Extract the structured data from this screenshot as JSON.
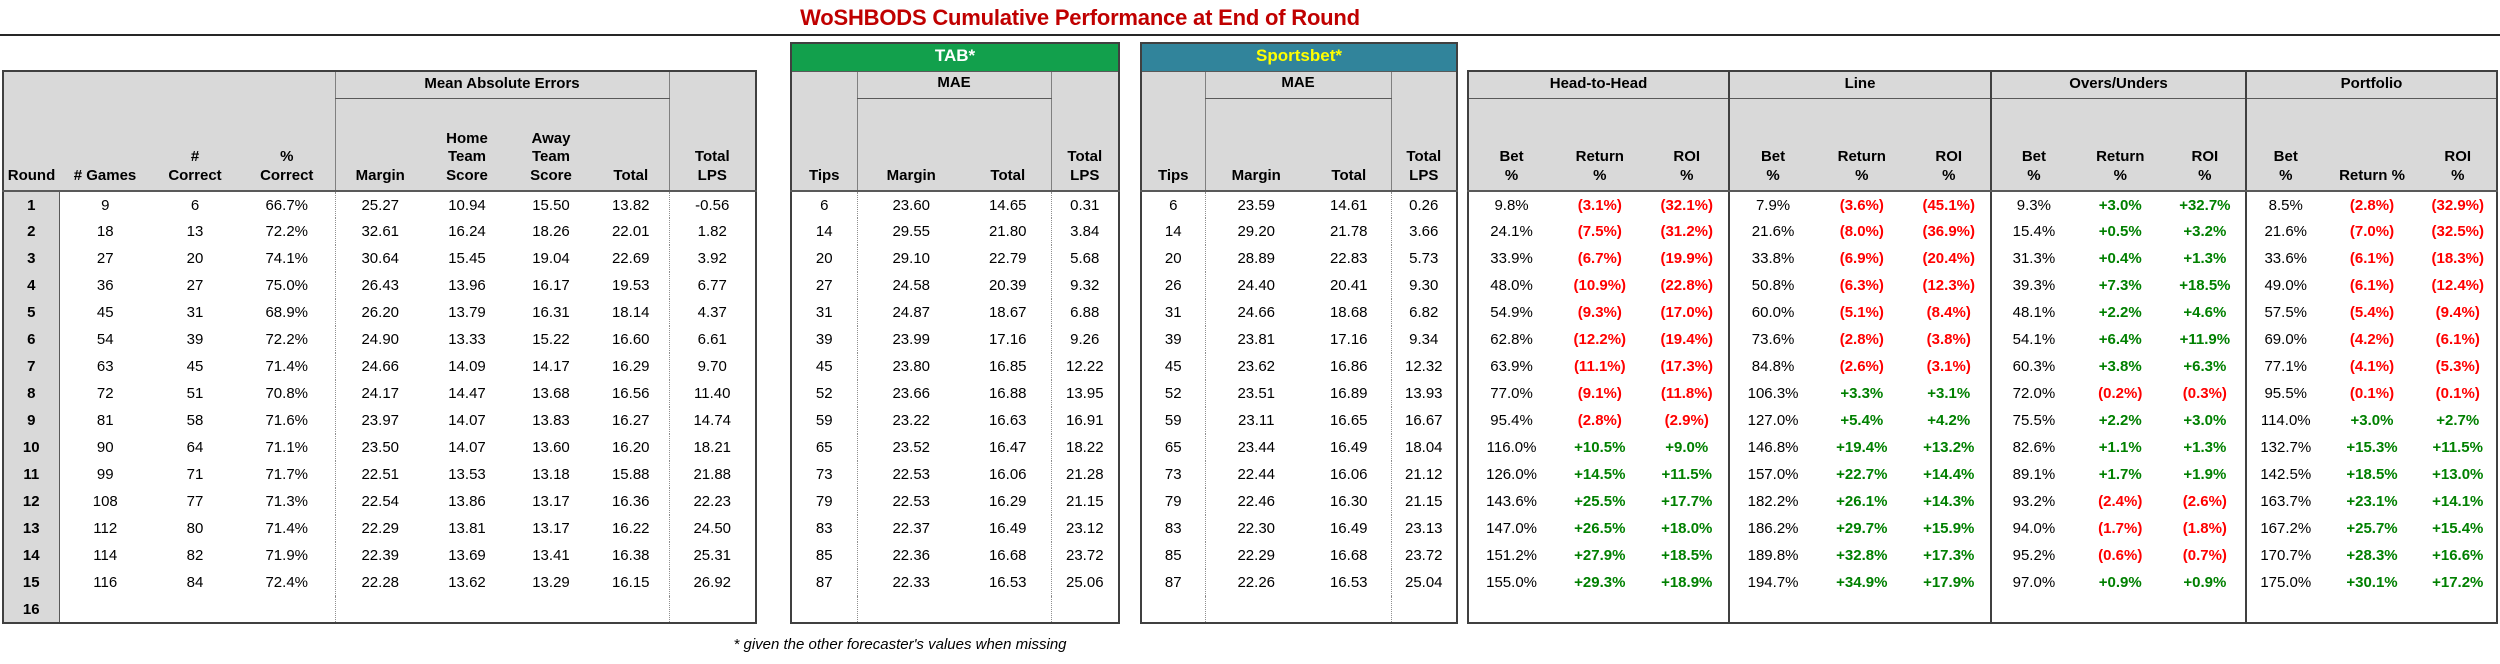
{
  "title": "WoSHBODS Cumulative Performance at End of Round",
  "footnote": "* given the other forecaster's values when missing",
  "colors": {
    "title": "#C00000",
    "tab_band": "#12A04C",
    "sportsbet_band": "#31849B",
    "sportsbet_text": "#FFFF00",
    "negative": "#FF0000",
    "positive": "#008000",
    "header_bg": "#D9D9D9"
  },
  "left": {
    "group": "Mean Absolute Errors",
    "cols": [
      "Round",
      "# Games",
      "#\nCorrect",
      "%\nCorrect",
      "Margin",
      "Home\nTeam\nScore",
      "Away\nTeam\nScore",
      "Total",
      "Total\nLPS"
    ]
  },
  "tab": {
    "band": "TAB*",
    "group": "MAE",
    "cols": [
      "Tips",
      "Margin",
      "Total",
      "Total\nLPS"
    ]
  },
  "sportsbet": {
    "band": "Sportsbet*",
    "group": "MAE",
    "cols": [
      "Tips",
      "Margin",
      "Total",
      "Total\nLPS"
    ]
  },
  "betting": [
    {
      "name": "Head-to-Head",
      "cols": [
        "Bet\n%",
        "Return\n%",
        "ROI\n%"
      ]
    },
    {
      "name": "Line",
      "cols": [
        "Bet\n%",
        "Return\n%",
        "ROI\n%"
      ]
    },
    {
      "name": "Overs/Unders",
      "cols": [
        "Bet\n%",
        "Return\n%",
        "ROI\n%"
      ]
    },
    {
      "name": "Portfolio",
      "cols": [
        "Bet\n%",
        "Return %",
        "ROI\n%"
      ]
    }
  ],
  "rows": [
    {
      "round": "1",
      "games": "9",
      "correct": "6",
      "pct": "66.7%",
      "mae": [
        "25.27",
        "10.94",
        "15.50",
        "13.82"
      ],
      "lps": "-0.56",
      "tab": [
        "6",
        "23.60",
        "14.65",
        "0.31"
      ],
      "sb": [
        "6",
        "23.59",
        "14.61",
        "0.26"
      ],
      "h2h": [
        "9.8%",
        "(3.1%)",
        "(32.1%)"
      ],
      "line": [
        "7.9%",
        "(3.6%)",
        "(45.1%)"
      ],
      "ou": [
        "9.3%",
        "+3.0%",
        "+32.7%"
      ],
      "pf": [
        "8.5%",
        "(2.8%)",
        "(32.9%)"
      ]
    },
    {
      "round": "2",
      "games": "18",
      "correct": "13",
      "pct": "72.2%",
      "mae": [
        "32.61",
        "16.24",
        "18.26",
        "22.01"
      ],
      "lps": "1.82",
      "tab": [
        "14",
        "29.55",
        "21.80",
        "3.84"
      ],
      "sb": [
        "14",
        "29.20",
        "21.78",
        "3.66"
      ],
      "h2h": [
        "24.1%",
        "(7.5%)",
        "(31.2%)"
      ],
      "line": [
        "21.6%",
        "(8.0%)",
        "(36.9%)"
      ],
      "ou": [
        "15.4%",
        "+0.5%",
        "+3.2%"
      ],
      "pf": [
        "21.6%",
        "(7.0%)",
        "(32.5%)"
      ]
    },
    {
      "round": "3",
      "games": "27",
      "correct": "20",
      "pct": "74.1%",
      "mae": [
        "30.64",
        "15.45",
        "19.04",
        "22.69"
      ],
      "lps": "3.92",
      "tab": [
        "20",
        "29.10",
        "22.79",
        "5.68"
      ],
      "sb": [
        "20",
        "28.89",
        "22.83",
        "5.73"
      ],
      "h2h": [
        "33.9%",
        "(6.7%)",
        "(19.9%)"
      ],
      "line": [
        "33.8%",
        "(6.9%)",
        "(20.4%)"
      ],
      "ou": [
        "31.3%",
        "+0.4%",
        "+1.3%"
      ],
      "pf": [
        "33.6%",
        "(6.1%)",
        "(18.3%)"
      ]
    },
    {
      "round": "4",
      "games": "36",
      "correct": "27",
      "pct": "75.0%",
      "mae": [
        "26.43",
        "13.96",
        "16.17",
        "19.53"
      ],
      "lps": "6.77",
      "tab": [
        "27",
        "24.58",
        "20.39",
        "9.32"
      ],
      "sb": [
        "26",
        "24.40",
        "20.41",
        "9.30"
      ],
      "h2h": [
        "48.0%",
        "(10.9%)",
        "(22.8%)"
      ],
      "line": [
        "50.8%",
        "(6.3%)",
        "(12.3%)"
      ],
      "ou": [
        "39.3%",
        "+7.3%",
        "+18.5%"
      ],
      "pf": [
        "49.0%",
        "(6.1%)",
        "(12.4%)"
      ]
    },
    {
      "round": "5",
      "games": "45",
      "correct": "31",
      "pct": "68.9%",
      "mae": [
        "26.20",
        "13.79",
        "16.31",
        "18.14"
      ],
      "lps": "4.37",
      "tab": [
        "31",
        "24.87",
        "18.67",
        "6.88"
      ],
      "sb": [
        "31",
        "24.66",
        "18.68",
        "6.82"
      ],
      "h2h": [
        "54.9%",
        "(9.3%)",
        "(17.0%)"
      ],
      "line": [
        "60.0%",
        "(5.1%)",
        "(8.4%)"
      ],
      "ou": [
        "48.1%",
        "+2.2%",
        "+4.6%"
      ],
      "pf": [
        "57.5%",
        "(5.4%)",
        "(9.4%)"
      ]
    },
    {
      "round": "6",
      "games": "54",
      "correct": "39",
      "pct": "72.2%",
      "mae": [
        "24.90",
        "13.33",
        "15.22",
        "16.60"
      ],
      "lps": "6.61",
      "tab": [
        "39",
        "23.99",
        "17.16",
        "9.26"
      ],
      "sb": [
        "39",
        "23.81",
        "17.16",
        "9.34"
      ],
      "h2h": [
        "62.8%",
        "(12.2%)",
        "(19.4%)"
      ],
      "line": [
        "73.6%",
        "(2.8%)",
        "(3.8%)"
      ],
      "ou": [
        "54.1%",
        "+6.4%",
        "+11.9%"
      ],
      "pf": [
        "69.0%",
        "(4.2%)",
        "(6.1%)"
      ]
    },
    {
      "round": "7",
      "games": "63",
      "correct": "45",
      "pct": "71.4%",
      "mae": [
        "24.66",
        "14.09",
        "14.17",
        "16.29"
      ],
      "lps": "9.70",
      "tab": [
        "45",
        "23.80",
        "16.85",
        "12.22"
      ],
      "sb": [
        "45",
        "23.62",
        "16.86",
        "12.32"
      ],
      "h2h": [
        "63.9%",
        "(11.1%)",
        "(17.3%)"
      ],
      "line": [
        "84.8%",
        "(2.6%)",
        "(3.1%)"
      ],
      "ou": [
        "60.3%",
        "+3.8%",
        "+6.3%"
      ],
      "pf": [
        "77.1%",
        "(4.1%)",
        "(5.3%)"
      ]
    },
    {
      "round": "8",
      "games": "72",
      "correct": "51",
      "pct": "70.8%",
      "mae": [
        "24.17",
        "14.47",
        "13.68",
        "16.56"
      ],
      "lps": "11.40",
      "tab": [
        "52",
        "23.66",
        "16.88",
        "13.95"
      ],
      "sb": [
        "52",
        "23.51",
        "16.89",
        "13.93"
      ],
      "h2h": [
        "77.0%",
        "(9.1%)",
        "(11.8%)"
      ],
      "line": [
        "106.3%",
        "+3.3%",
        "+3.1%"
      ],
      "ou": [
        "72.0%",
        "(0.2%)",
        "(0.3%)"
      ],
      "pf": [
        "95.5%",
        "(0.1%)",
        "(0.1%)"
      ]
    },
    {
      "round": "9",
      "games": "81",
      "correct": "58",
      "pct": "71.6%",
      "mae": [
        "23.97",
        "14.07",
        "13.83",
        "16.27"
      ],
      "lps": "14.74",
      "tab": [
        "59",
        "23.22",
        "16.63",
        "16.91"
      ],
      "sb": [
        "59",
        "23.11",
        "16.65",
        "16.67"
      ],
      "h2h": [
        "95.4%",
        "(2.8%)",
        "(2.9%)"
      ],
      "line": [
        "127.0%",
        "+5.4%",
        "+4.2%"
      ],
      "ou": [
        "75.5%",
        "+2.2%",
        "+3.0%"
      ],
      "pf": [
        "114.0%",
        "+3.0%",
        "+2.7%"
      ]
    },
    {
      "round": "10",
      "games": "90",
      "correct": "64",
      "pct": "71.1%",
      "mae": [
        "23.50",
        "14.07",
        "13.60",
        "16.20"
      ],
      "lps": "18.21",
      "tab": [
        "65",
        "23.52",
        "16.47",
        "18.22"
      ],
      "sb": [
        "65",
        "23.44",
        "16.49",
        "18.04"
      ],
      "h2h": [
        "116.0%",
        "+10.5%",
        "+9.0%"
      ],
      "line": [
        "146.8%",
        "+19.4%",
        "+13.2%"
      ],
      "ou": [
        "82.6%",
        "+1.1%",
        "+1.3%"
      ],
      "pf": [
        "132.7%",
        "+15.3%",
        "+11.5%"
      ]
    },
    {
      "round": "11",
      "games": "99",
      "correct": "71",
      "pct": "71.7%",
      "mae": [
        "22.51",
        "13.53",
        "13.18",
        "15.88"
      ],
      "lps": "21.88",
      "tab": [
        "73",
        "22.53",
        "16.06",
        "21.28"
      ],
      "sb": [
        "73",
        "22.44",
        "16.06",
        "21.12"
      ],
      "h2h": [
        "126.0%",
        "+14.5%",
        "+11.5%"
      ],
      "line": [
        "157.0%",
        "+22.7%",
        "+14.4%"
      ],
      "ou": [
        "89.1%",
        "+1.7%",
        "+1.9%"
      ],
      "pf": [
        "142.5%",
        "+18.5%",
        "+13.0%"
      ]
    },
    {
      "round": "12",
      "games": "108",
      "correct": "77",
      "pct": "71.3%",
      "mae": [
        "22.54",
        "13.86",
        "13.17",
        "16.36"
      ],
      "lps": "22.23",
      "tab": [
        "79",
        "22.53",
        "16.29",
        "21.15"
      ],
      "sb": [
        "79",
        "22.46",
        "16.30",
        "21.15"
      ],
      "h2h": [
        "143.6%",
        "+25.5%",
        "+17.7%"
      ],
      "line": [
        "182.2%",
        "+26.1%",
        "+14.3%"
      ],
      "ou": [
        "93.2%",
        "(2.4%)",
        "(2.6%)"
      ],
      "pf": [
        "163.7%",
        "+23.1%",
        "+14.1%"
      ]
    },
    {
      "round": "13",
      "games": "112",
      "correct": "80",
      "pct": "71.4%",
      "mae": [
        "22.29",
        "13.81",
        "13.17",
        "16.22"
      ],
      "lps": "24.50",
      "tab": [
        "83",
        "22.37",
        "16.49",
        "23.12"
      ],
      "sb": [
        "83",
        "22.30",
        "16.49",
        "23.13"
      ],
      "h2h": [
        "147.0%",
        "+26.5%",
        "+18.0%"
      ],
      "line": [
        "186.2%",
        "+29.7%",
        "+15.9%"
      ],
      "ou": [
        "94.0%",
        "(1.7%)",
        "(1.8%)"
      ],
      "pf": [
        "167.2%",
        "+25.7%",
        "+15.4%"
      ]
    },
    {
      "round": "14",
      "games": "114",
      "correct": "82",
      "pct": "71.9%",
      "mae": [
        "22.39",
        "13.69",
        "13.41",
        "16.38"
      ],
      "lps": "25.31",
      "tab": [
        "85",
        "22.36",
        "16.68",
        "23.72"
      ],
      "sb": [
        "85",
        "22.29",
        "16.68",
        "23.72"
      ],
      "h2h": [
        "151.2%",
        "+27.9%",
        "+18.5%"
      ],
      "line": [
        "189.8%",
        "+32.8%",
        "+17.3%"
      ],
      "ou": [
        "95.2%",
        "(0.6%)",
        "(0.7%)"
      ],
      "pf": [
        "170.7%",
        "+28.3%",
        "+16.6%"
      ]
    },
    {
      "round": "15",
      "games": "116",
      "correct": "84",
      "pct": "72.4%",
      "mae": [
        "22.28",
        "13.62",
        "13.29",
        "16.15"
      ],
      "lps": "26.92",
      "tab": [
        "87",
        "22.33",
        "16.53",
        "25.06"
      ],
      "sb": [
        "87",
        "22.26",
        "16.53",
        "25.04"
      ],
      "h2h": [
        "155.0%",
        "+29.3%",
        "+18.9%"
      ],
      "line": [
        "194.7%",
        "+34.9%",
        "+17.9%"
      ],
      "ou": [
        "97.0%",
        "+0.9%",
        "+0.9%"
      ],
      "pf": [
        "175.0%",
        "+30.1%",
        "+17.2%"
      ]
    },
    {
      "round": "16",
      "games": "",
      "correct": "",
      "pct": "",
      "mae": [
        "",
        "",
        "",
        ""
      ],
      "lps": "",
      "tab": [
        "",
        "",
        "",
        ""
      ],
      "sb": [
        "",
        "",
        "",
        ""
      ],
      "h2h": [
        "",
        "",
        ""
      ],
      "line": [
        "",
        "",
        ""
      ],
      "ou": [
        "",
        "",
        ""
      ],
      "pf": [
        "",
        "",
        ""
      ]
    }
  ]
}
